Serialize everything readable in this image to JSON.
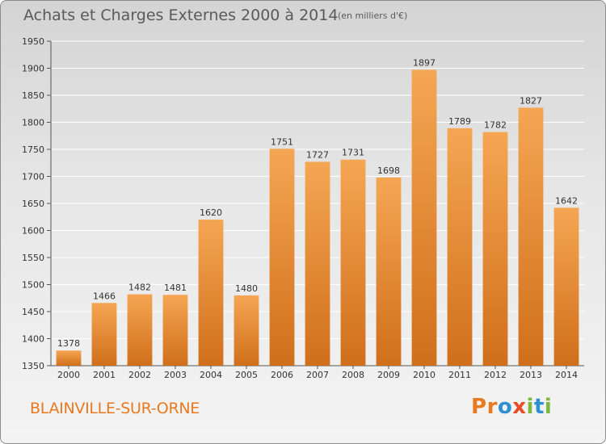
{
  "header": {
    "title": "Achats et Charges Externes 2000 à 2014",
    "unit": "(en milliers d'€)"
  },
  "footer": {
    "place": "BLAINVILLE-SUR-ORNE",
    "brand_letters": [
      "P",
      "r",
      "o",
      "x",
      "i",
      "t",
      "i"
    ]
  },
  "colors": {
    "bar_light": "#f5a653",
    "bar_dark": "#d06f1b",
    "place_text": "#e8791e",
    "brand_letters": [
      "#e8791e",
      "#e8791e",
      "#2e8fd1",
      "#e84a2a",
      "#7cb83d",
      "#2e8fd1",
      "#7cb83d"
    ]
  },
  "chart_data": {
    "type": "bar",
    "categories": [
      "2000",
      "2001",
      "2002",
      "2003",
      "2004",
      "2005",
      "2006",
      "2007",
      "2008",
      "2009",
      "2010",
      "2011",
      "2012",
      "2013",
      "2014"
    ],
    "values": [
      1378,
      1466,
      1482,
      1481,
      1620,
      1480,
      1751,
      1727,
      1731,
      1698,
      1897,
      1789,
      1782,
      1827,
      1642
    ],
    "title": "Achats et Charges Externes 2000 à 2014",
    "ylim": [
      1350,
      1950
    ],
    "yticks": [
      1350,
      1400,
      1450,
      1500,
      1550,
      1600,
      1650,
      1700,
      1750,
      1800,
      1850,
      1900,
      1950
    ],
    "grid": true,
    "legend": "none"
  }
}
